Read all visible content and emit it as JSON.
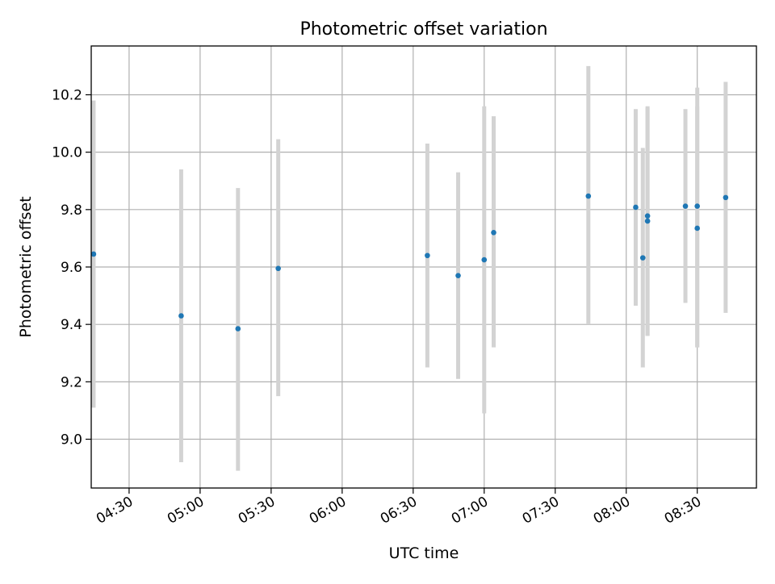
{
  "chart_data": {
    "type": "scatter",
    "title": "Photometric offset variation",
    "xlabel": "UTC time",
    "ylabel": "Photometric offset",
    "x_is_time": true,
    "xlim": [
      "04:14",
      "08:55"
    ],
    "ylim": [
      8.83,
      10.37
    ],
    "x_ticks": [
      "04:30",
      "05:00",
      "05:30",
      "06:00",
      "06:30",
      "07:00",
      "07:30",
      "08:00",
      "08:30"
    ],
    "y_ticks": [
      9.0,
      9.2,
      9.4,
      9.6,
      9.8,
      10.0,
      10.2
    ],
    "y_tick_labels": [
      "9.0",
      "9.2",
      "9.4",
      "9.6",
      "9.8",
      "10.0",
      "10.2"
    ],
    "grid": true,
    "point_color": "#1f77b4",
    "errorbar_color": "#d3d3d3",
    "points": [
      {
        "x": "04:15",
        "y": 9.645,
        "ylow": 9.11,
        "yhigh": 10.18
      },
      {
        "x": "04:52",
        "y": 9.43,
        "ylow": 8.92,
        "yhigh": 9.94
      },
      {
        "x": "05:16",
        "y": 9.385,
        "ylow": 8.89,
        "yhigh": 9.875
      },
      {
        "x": "05:33",
        "y": 9.595,
        "ylow": 9.15,
        "yhigh": 10.045
      },
      {
        "x": "06:36",
        "y": 9.64,
        "ylow": 9.25,
        "yhigh": 10.03
      },
      {
        "x": "06:49",
        "y": 9.57,
        "ylow": 9.21,
        "yhigh": 9.93
      },
      {
        "x": "07:00",
        "y": 9.625,
        "ylow": 9.09,
        "yhigh": 10.16
      },
      {
        "x": "07:04",
        "y": 9.72,
        "ylow": 9.32,
        "yhigh": 10.125
      },
      {
        "x": "07:44",
        "y": 9.847,
        "ylow": 9.4,
        "yhigh": 10.3
      },
      {
        "x": "08:04",
        "y": 9.808,
        "ylow": 9.465,
        "yhigh": 10.15
      },
      {
        "x": "08:07",
        "y": 9.632,
        "ylow": 9.25,
        "yhigh": 10.015
      },
      {
        "x": "08:09",
        "y": 9.778,
        "ylow": 9.36,
        "yhigh": 10.16
      },
      {
        "x": "08:09",
        "y": 9.76,
        "ylow": 9.36,
        "yhigh": 10.155
      },
      {
        "x": "08:25",
        "y": 9.812,
        "ylow": 9.475,
        "yhigh": 10.15
      },
      {
        "x": "08:30",
        "y": 9.812,
        "ylow": 9.32,
        "yhigh": 10.225
      },
      {
        "x": "08:30",
        "y": 9.735,
        "ylow": 9.32,
        "yhigh": 10.16
      },
      {
        "x": "08:42",
        "y": 9.842,
        "ylow": 9.44,
        "yhigh": 10.245
      }
    ]
  }
}
